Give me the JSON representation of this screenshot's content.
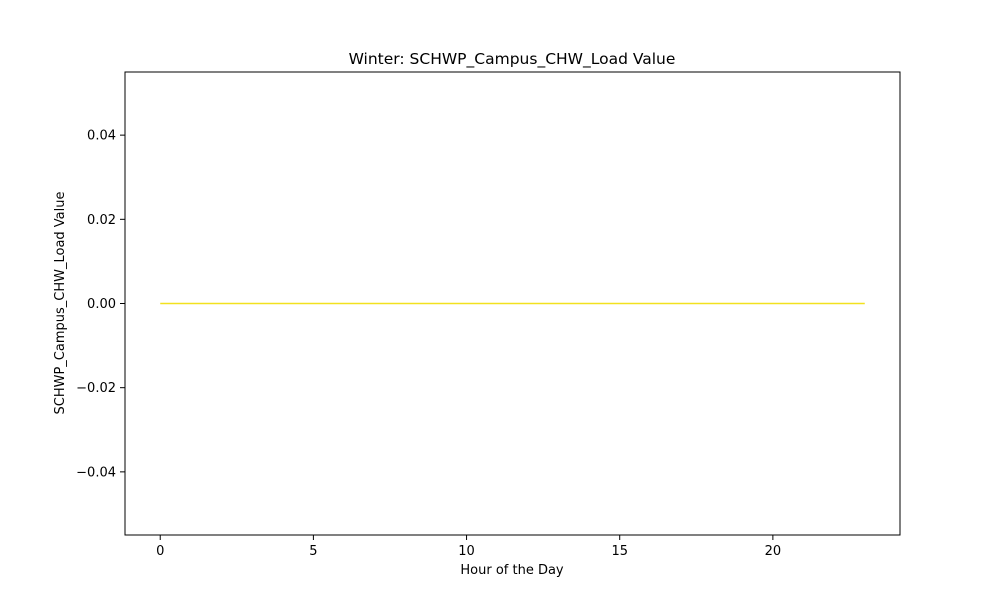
{
  "chart_data": {
    "type": "line",
    "title": "Winter: SCHWP_Campus_CHW_Load Value",
    "xlabel": "Hour of the Day",
    "ylabel": "SCHWP_Campus_CHW_Load Value",
    "xlim": [
      -1.15,
      24.15
    ],
    "ylim": [
      -0.055,
      0.055
    ],
    "xticks": [
      0,
      5,
      10,
      15,
      20
    ],
    "xtick_labels": [
      "0",
      "5",
      "10",
      "15",
      "20"
    ],
    "yticks": [
      -0.04,
      -0.02,
      0.0,
      0.02,
      0.04
    ],
    "ytick_labels": [
      "−0.04",
      "−0.02",
      "0.00",
      "0.02",
      "0.04"
    ],
    "grid": false,
    "series": [
      {
        "color": "#f2e11f",
        "x": [
          0,
          1,
          2,
          3,
          4,
          5,
          6,
          7,
          8,
          9,
          10,
          11,
          12,
          13,
          14,
          15,
          16,
          17,
          18,
          19,
          20,
          21,
          22,
          23
        ],
        "y": [
          0,
          0,
          0,
          0,
          0,
          0,
          0,
          0,
          0,
          0,
          0,
          0,
          0,
          0,
          0,
          0,
          0,
          0,
          0,
          0,
          0,
          0,
          0,
          0
        ]
      }
    ]
  }
}
